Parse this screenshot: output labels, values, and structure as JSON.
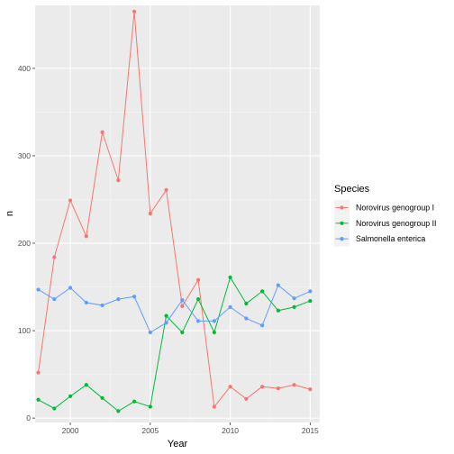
{
  "chart_data": {
    "type": "line",
    "xlabel": "Year",
    "ylabel": "n",
    "xlim": [
      1997.8,
      2015.6
    ],
    "ylim": [
      -5,
      472
    ],
    "x_ticks": [
      2000,
      2005,
      2010,
      2015
    ],
    "x_tick_labels": [
      "2000",
      "2005",
      "2010",
      "2015"
    ],
    "y_ticks": [
      0,
      100,
      200,
      300,
      400
    ],
    "y_tick_labels": [
      "0",
      "100",
      "200",
      "300",
      "400"
    ],
    "x": [
      1998,
      1999,
      2000,
      2001,
      2002,
      2003,
      2004,
      2005,
      2006,
      2007,
      2008,
      2009,
      2010,
      2011,
      2012,
      2013,
      2014,
      2015
    ],
    "grid": true,
    "legend_title": "Species",
    "legend_position": "right",
    "series": [
      {
        "name": "Norovirus genogroup I",
        "color": "#F8766D",
        "values": [
          52,
          184,
          249,
          208,
          327,
          272,
          465,
          234,
          261,
          128,
          158,
          13,
          36,
          22,
          36,
          34,
          38,
          33
        ]
      },
      {
        "name": "Norovirus genogroup II",
        "color": "#00BA38",
        "values": [
          21,
          11,
          25,
          38,
          23,
          8,
          19,
          13,
          117,
          98,
          136,
          98,
          161,
          131,
          145,
          123,
          127,
          134
        ]
      },
      {
        "name": "Salmonella enterica",
        "color": "#619CFF",
        "values": [
          147,
          136,
          149,
          132,
          129,
          136,
          139,
          98,
          109,
          135,
          111,
          111,
          127,
          114,
          106,
          152,
          137,
          145
        ]
      }
    ]
  }
}
